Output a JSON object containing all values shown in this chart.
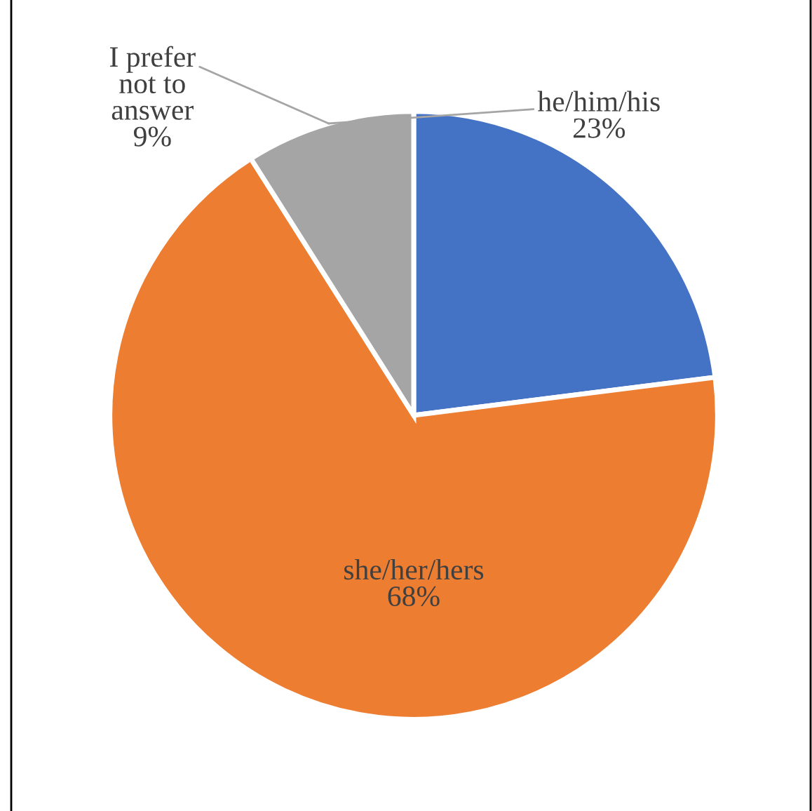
{
  "chart_data": {
    "type": "pie",
    "categories": [
      "he/him/his",
      "she/her/hers",
      "I prefer\nnot to\nanswer"
    ],
    "values": [
      23,
      68,
      9
    ],
    "colors": [
      "#4472c4",
      "#ed7d31",
      "#a5a5a5"
    ],
    "value_labels": [
      "23%",
      "68%",
      "9%"
    ]
  }
}
